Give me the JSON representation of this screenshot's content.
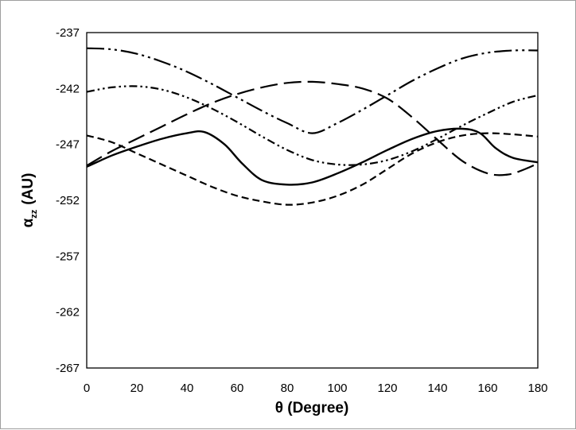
{
  "chart_data": {
    "type": "line",
    "xlabel": "θ (Degree)",
    "ylabel": {
      "symbol": "α",
      "subscript": "zz",
      "unit": "(AU)"
    },
    "xlim": [
      0,
      180
    ],
    "ylim": [
      -267,
      -237
    ],
    "x_ticks": [
      "0",
      "20",
      "40",
      "60",
      "80",
      "100",
      "120",
      "140",
      "160",
      "180"
    ],
    "y_ticks": [
      "-237",
      "-242",
      "-247",
      "-252",
      "-257",
      "-262",
      "-267"
    ],
    "grid": false,
    "legend": "none",
    "series": [
      {
        "style": "solid",
        "color": "#000000",
        "points": [
          [
            0,
            -249.0
          ],
          [
            10,
            -248.0
          ],
          [
            20,
            -247.2
          ],
          [
            30,
            -246.5
          ],
          [
            40,
            -246.0
          ],
          [
            47,
            -245.9
          ],
          [
            55,
            -247.0
          ],
          [
            62,
            -248.7
          ],
          [
            70,
            -250.2
          ],
          [
            80,
            -250.6
          ],
          [
            90,
            -250.4
          ],
          [
            100,
            -249.6
          ],
          [
            110,
            -248.6
          ],
          [
            120,
            -247.5
          ],
          [
            130,
            -246.5
          ],
          [
            140,
            -245.8
          ],
          [
            150,
            -245.6
          ],
          [
            157,
            -246.0
          ],
          [
            163,
            -247.3
          ],
          [
            170,
            -248.2
          ],
          [
            180,
            -248.6
          ]
        ]
      },
      {
        "style": "short-dash",
        "color": "#000000",
        "points": [
          [
            0,
            -246.2
          ],
          [
            10,
            -246.8
          ],
          [
            20,
            -247.8
          ],
          [
            30,
            -248.8
          ],
          [
            40,
            -249.8
          ],
          [
            50,
            -250.8
          ],
          [
            60,
            -251.6
          ],
          [
            70,
            -252.1
          ],
          [
            80,
            -252.4
          ],
          [
            90,
            -252.2
          ],
          [
            100,
            -251.6
          ],
          [
            110,
            -250.6
          ],
          [
            120,
            -249.2
          ],
          [
            130,
            -247.8
          ],
          [
            140,
            -246.8
          ],
          [
            150,
            -246.2
          ],
          [
            160,
            -246.0
          ],
          [
            170,
            -246.1
          ],
          [
            180,
            -246.3
          ]
        ]
      },
      {
        "style": "long-dash",
        "color": "#000000",
        "points": [
          [
            0,
            -248.9
          ],
          [
            10,
            -247.6
          ],
          [
            20,
            -246.5
          ],
          [
            30,
            -245.4
          ],
          [
            40,
            -244.3
          ],
          [
            50,
            -243.3
          ],
          [
            60,
            -242.5
          ],
          [
            70,
            -241.9
          ],
          [
            80,
            -241.5
          ],
          [
            90,
            -241.4
          ],
          [
            100,
            -241.6
          ],
          [
            110,
            -242.0
          ],
          [
            120,
            -242.9
          ],
          [
            130,
            -244.6
          ],
          [
            140,
            -246.6
          ],
          [
            150,
            -248.5
          ],
          [
            160,
            -249.6
          ],
          [
            168,
            -249.7
          ],
          [
            175,
            -249.2
          ],
          [
            180,
            -248.7
          ]
        ]
      },
      {
        "style": "dash-dot-dot-large",
        "color": "#000000",
        "points": [
          [
            0,
            -238.4
          ],
          [
            10,
            -238.5
          ],
          [
            20,
            -238.9
          ],
          [
            30,
            -239.6
          ],
          [
            40,
            -240.5
          ],
          [
            50,
            -241.6
          ],
          [
            60,
            -242.8
          ],
          [
            70,
            -244.0
          ],
          [
            80,
            -245.1
          ],
          [
            90,
            -246.0
          ],
          [
            100,
            -245.1
          ],
          [
            110,
            -243.9
          ],
          [
            120,
            -242.6
          ],
          [
            130,
            -241.3
          ],
          [
            140,
            -240.2
          ],
          [
            150,
            -239.3
          ],
          [
            160,
            -238.8
          ],
          [
            170,
            -238.6
          ],
          [
            180,
            -238.6
          ]
        ]
      },
      {
        "style": "dash-dot-dot-small",
        "color": "#000000",
        "points": [
          [
            0,
            -242.3
          ],
          [
            10,
            -241.9
          ],
          [
            20,
            -241.8
          ],
          [
            30,
            -242.1
          ],
          [
            40,
            -242.8
          ],
          [
            50,
            -243.8
          ],
          [
            60,
            -245.0
          ],
          [
            70,
            -246.3
          ],
          [
            80,
            -247.5
          ],
          [
            90,
            -248.4
          ],
          [
            100,
            -248.8
          ],
          [
            110,
            -248.8
          ],
          [
            120,
            -248.4
          ],
          [
            130,
            -247.6
          ],
          [
            140,
            -246.5
          ],
          [
            150,
            -245.3
          ],
          [
            160,
            -244.2
          ],
          [
            170,
            -243.2
          ],
          [
            180,
            -242.6
          ]
        ]
      }
    ]
  }
}
